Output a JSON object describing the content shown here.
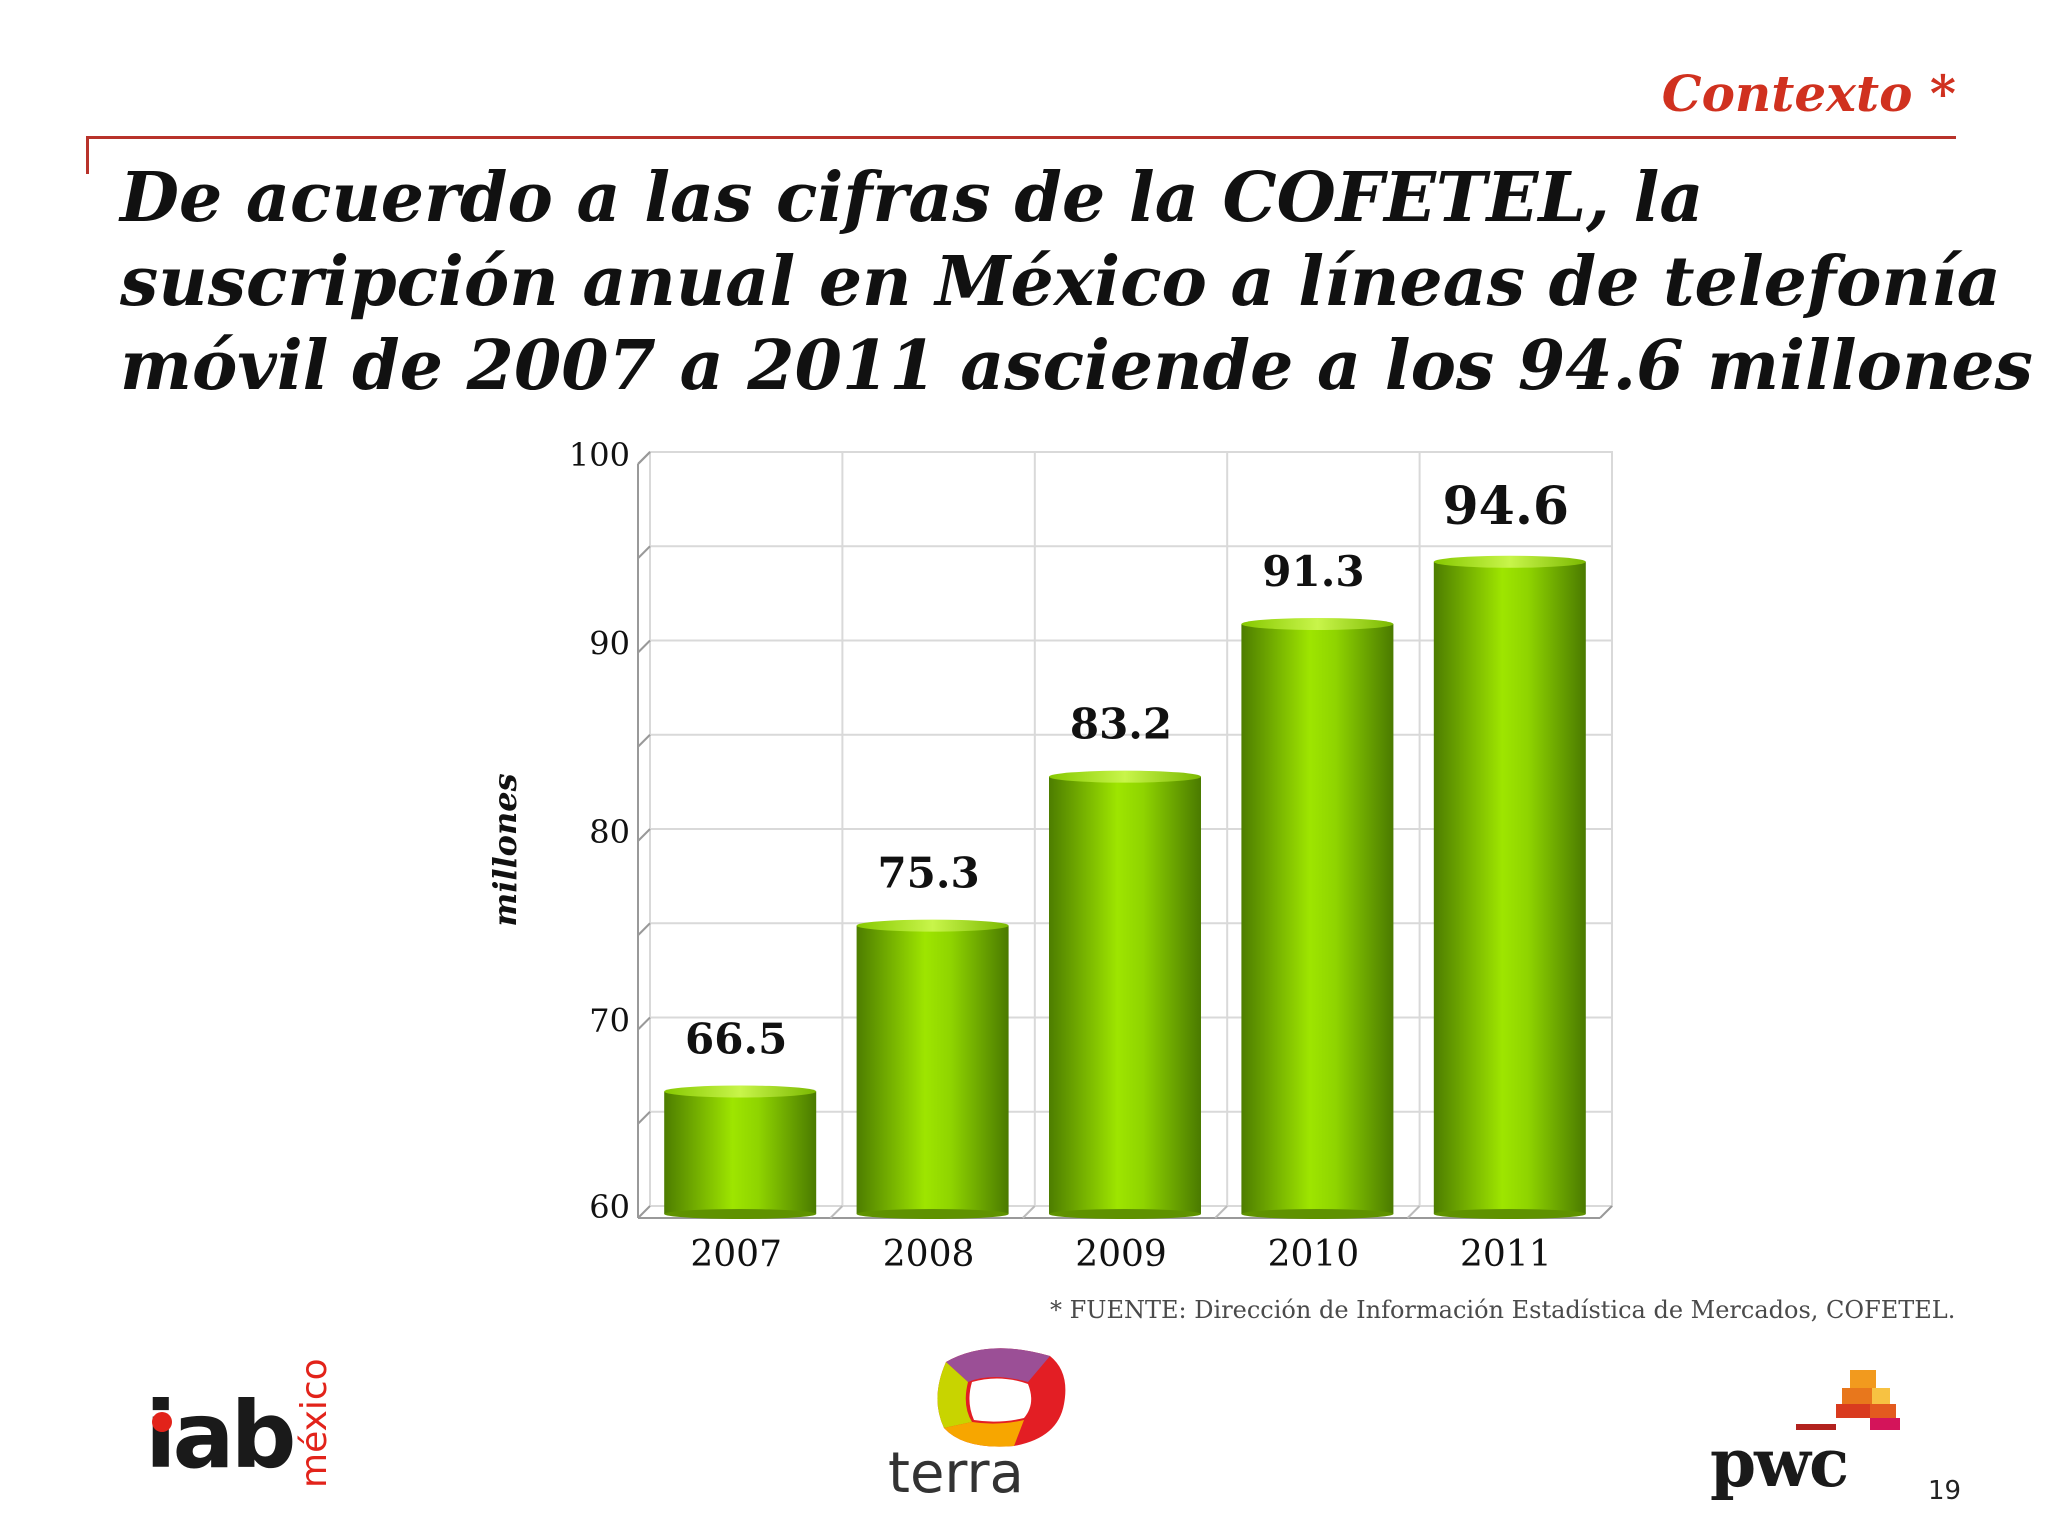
{
  "header": {
    "section_label": "Contexto *",
    "headline_lines": [
      "De acuerdo a las cifras de la COFETEL, la",
      "suscripción anual en México a líneas de telefonía",
      "móvil de 2007 a 2011 asciende a los 94.6 millones"
    ]
  },
  "chart_data": {
    "type": "bar",
    "categories": [
      "2007",
      "2008",
      "2009",
      "2010",
      "2011"
    ],
    "values": [
      66.5,
      75.3,
      83.2,
      91.3,
      94.6
    ],
    "data_labels": [
      "66.5",
      "75.3",
      "83.2",
      "91.3",
      "94.6"
    ],
    "ylabel": "millones",
    "ylim": [
      60,
      100
    ],
    "yticks": [
      "60",
      "70",
      "80",
      "90",
      "100"
    ],
    "grid": true,
    "bar_style": "3d-cylinder",
    "colors": {
      "bar_light": "#9ee500",
      "bar_dark": "#4d7d00",
      "grid": "#d9d9d9"
    }
  },
  "source_note": "* FUENTE: Dirección de Información Estadística de Mercados, COFETEL.",
  "logos": {
    "iab": {
      "name": "iab",
      "sub": "méxico"
    },
    "terra": {
      "name": "terra"
    },
    "pwc": {
      "name": "pwc"
    }
  },
  "page_number": "19"
}
